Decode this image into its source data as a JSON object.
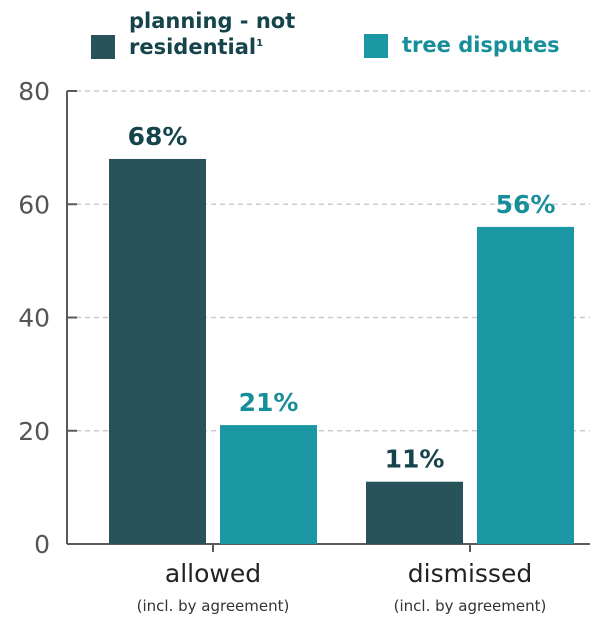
{
  "legend": {
    "series1_label": "planning - not residential",
    "series1_sup": "1",
    "series2_label": "tree disputes"
  },
  "colors": {
    "series1": "#28535a",
    "series2": "#1a97a2",
    "label1": "#15444b",
    "label2": "#178f9b",
    "grid": "#cccccc",
    "axis": "#5a5a5a",
    "tick": "#555555"
  },
  "chart_data": {
    "type": "bar",
    "categories": [
      "allowed",
      "dismissed"
    ],
    "category_sublabels": [
      "(incl. by agreement)",
      "(incl. by agreement)"
    ],
    "series": [
      {
        "name": "planning - not residential",
        "values": [
          68,
          11
        ],
        "labels": [
          "68%",
          "11%"
        ]
      },
      {
        "name": "tree disputes",
        "values": [
          21,
          56
        ],
        "labels": [
          "21%",
          "56%"
        ]
      }
    ],
    "ylim": [
      0,
      80
    ],
    "yticks": [
      0,
      20,
      40,
      60,
      80
    ],
    "grid": true,
    "legend_position": "top"
  }
}
